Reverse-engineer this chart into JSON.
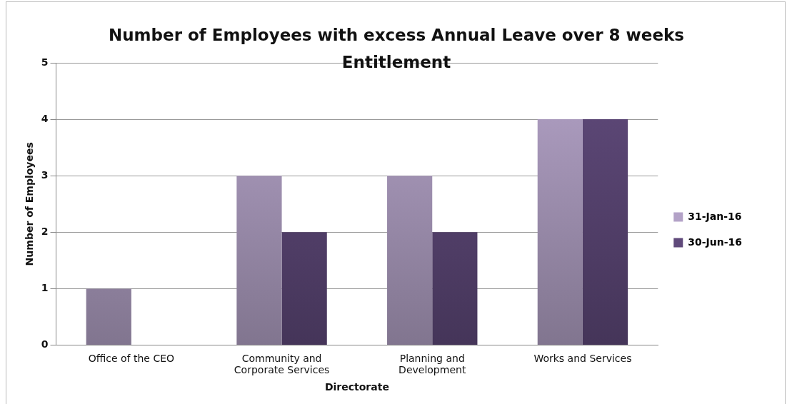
{
  "chart_data": {
    "type": "bar",
    "title": "Number of Employees with excess Annual Leave over 8 weeks Entitlement",
    "xlabel": "Directorate",
    "ylabel": "Number of Employees",
    "categories": [
      "Office of the CEO",
      "Community and Corporate Services",
      "Planning and Development",
      "Works and Services"
    ],
    "series": [
      {
        "name": "31-Jan-16",
        "color": "#b3a2c7",
        "values": [
          1,
          3,
          3,
          4
        ]
      },
      {
        "name": "30-Jun-16",
        "color": "#604a7b",
        "values": [
          0,
          2,
          2,
          4
        ]
      }
    ],
    "ylim": [
      0,
      5
    ],
    "yticks": [
      0,
      1,
      2,
      3,
      4,
      5
    ],
    "grid": "y",
    "legend": "right"
  }
}
